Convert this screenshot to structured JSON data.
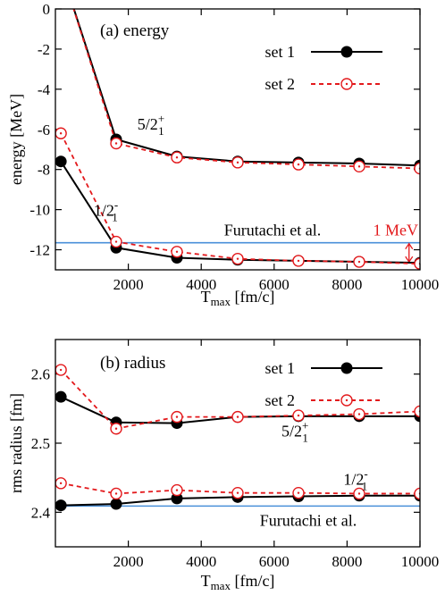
{
  "chart_data": [
    {
      "type": "line",
      "panel_label": "(a) energy",
      "xlabel_main": "T",
      "xlabel_sub": "max",
      "xlabel_rest": " [fm/c]",
      "ylabel": "energy [MeV]",
      "xlim": [
        0,
        10000
      ],
      "ylim": [
        -13,
        0
      ],
      "xticks": [
        "2000",
        "4000",
        "6000",
        "8000",
        "10000"
      ],
      "yticks": [
        "0",
        "-2",
        "-4",
        "-6",
        "-8",
        "-10",
        "-12"
      ],
      "legend": [
        "set 1",
        "set 2"
      ],
      "series": [
        {
          "name": "set 1",
          "state": "5/2+",
          "x": [
            150,
            1667,
            3333,
            5000,
            6667,
            8333,
            10000
          ],
          "y": [
            2.0,
            -6.5,
            -7.35,
            -7.6,
            -7.65,
            -7.7,
            -7.8
          ]
        },
        {
          "name": "set 2",
          "state": "5/2+",
          "x": [
            150,
            1667,
            3333,
            5000,
            6667,
            8333,
            10000
          ],
          "y": [
            2.0,
            -6.7,
            -7.4,
            -7.65,
            -7.75,
            -7.85,
            -7.95
          ]
        },
        {
          "name": "set 1",
          "state": "1/2-",
          "x": [
            150,
            1667,
            3333,
            5000,
            6667,
            8333,
            10000
          ],
          "y": [
            -7.6,
            -11.9,
            -12.4,
            -12.5,
            -12.55,
            -12.6,
            -12.65
          ]
        },
        {
          "name": "set 2",
          "state": "1/2-",
          "x": [
            150,
            1667,
            3333,
            5000,
            6667,
            8333,
            10000
          ],
          "y": [
            -6.2,
            -11.6,
            -12.1,
            -12.45,
            -12.55,
            -12.6,
            -12.7
          ]
        }
      ],
      "reference_line": {
        "label": "Furutachi et al.",
        "y": -11.65
      },
      "bracket": {
        "label": "1 MeV",
        "y1": -11.65,
        "y2": -12.65,
        "x": 9700
      },
      "annotations": [
        {
          "label_main": "5/2",
          "label_sup": "+",
          "label_sub": "1",
          "x": 2250,
          "y": -6.0
        },
        {
          "label_main": "1/2",
          "label_sup": "-",
          "label_sub": "1",
          "x": 1050,
          "y": -10.3
        }
      ]
    },
    {
      "type": "line",
      "panel_label": "(b) radius",
      "xlabel_main": "T",
      "xlabel_sub": "max",
      "xlabel_rest": " [fm/c]",
      "ylabel": "rms radius [fm]",
      "xlim": [
        0,
        10000
      ],
      "ylim": [
        2.35,
        2.65
      ],
      "xticks": [
        "2000",
        "4000",
        "6000",
        "8000",
        "10000"
      ],
      "yticks": [
        "2.4",
        "2.5",
        "2.6"
      ],
      "legend": [
        "set 1",
        "set 2"
      ],
      "series": [
        {
          "name": "set 1",
          "state": "5/2+",
          "x": [
            150,
            1667,
            3333,
            5000,
            6667,
            8333,
            10000
          ],
          "y": [
            2.567,
            2.53,
            2.529,
            2.538,
            2.539,
            2.539,
            2.539
          ]
        },
        {
          "name": "set 2",
          "state": "5/2+",
          "x": [
            150,
            1667,
            3333,
            5000,
            6667,
            8333,
            10000
          ],
          "y": [
            2.606,
            2.521,
            2.538,
            2.538,
            2.54,
            2.542,
            2.546
          ]
        },
        {
          "name": "set 1",
          "state": "1/2-",
          "x": [
            150,
            1667,
            3333,
            5000,
            6667,
            8333,
            10000
          ],
          "y": [
            2.41,
            2.412,
            2.42,
            2.422,
            2.423,
            2.424,
            2.424
          ]
        },
        {
          "name": "set 2",
          "state": "1/2-",
          "x": [
            150,
            1667,
            3333,
            5000,
            6667,
            8333,
            10000
          ],
          "y": [
            2.442,
            2.427,
            2.432,
            2.428,
            2.428,
            2.427,
            2.427
          ]
        }
      ],
      "reference_line": {
        "label": "Furutachi et al.",
        "y": 2.409
      },
      "annotations": [
        {
          "label_main": "5/2",
          "label_sup": "+",
          "label_sub": "1",
          "x": 6200,
          "y": 2.51
        },
        {
          "label_main": "1/2",
          "label_sup": "-",
          "label_sub": "1",
          "x": 7900,
          "y": 2.44
        }
      ]
    }
  ],
  "colors": {
    "set1": "#000000",
    "set2": "#e3191c",
    "reference": "#4a90d9",
    "bracket": "#e3191c"
  }
}
